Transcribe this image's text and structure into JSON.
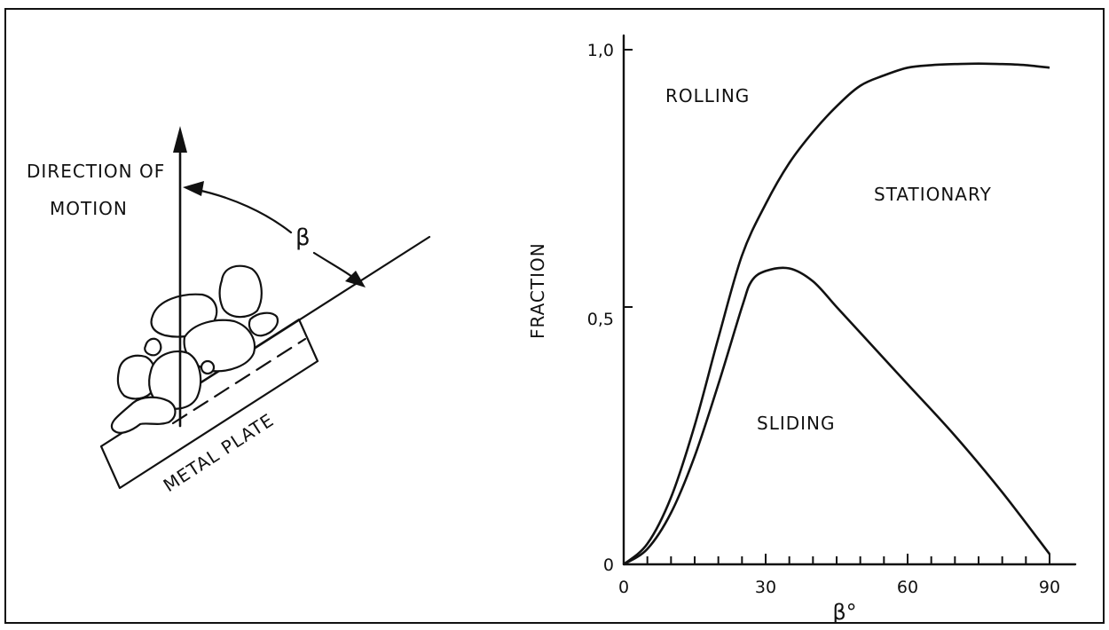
{
  "diagram": {
    "direction_label_line1": "DIRECTION OF",
    "direction_label_line2": "MOTION",
    "angle_label": "β",
    "plate_label": "METAL PLATE"
  },
  "chart_data": {
    "type": "line",
    "xlabel": "β°",
    "ylabel": "FRACTION",
    "xlim": [
      0,
      95
    ],
    "ylim": [
      0,
      1.05
    ],
    "x_ticks": [
      0,
      30,
      60,
      90
    ],
    "x_tick_labels": [
      "0",
      "30",
      "60",
      "90"
    ],
    "y_ticks": [
      0,
      0.5,
      1.0
    ],
    "y_tick_labels": [
      "0",
      "0,5",
      "1,0"
    ],
    "grid": false,
    "region_labels": [
      "ROLLING",
      "STATIONARY",
      "SLIDING"
    ],
    "series": [
      {
        "key": "upper",
        "x": [
          0,
          5,
          10,
          15,
          20,
          25,
          30,
          35,
          40,
          45,
          50,
          55,
          60,
          65,
          70,
          75,
          80,
          85,
          90
        ],
        "y": [
          0,
          0.04,
          0.13,
          0.27,
          0.44,
          0.6,
          0.7,
          0.78,
          0.84,
          0.89,
          0.93,
          0.95,
          0.965,
          0.97,
          0.972,
          0.973,
          0.972,
          0.97,
          0.965
        ]
      },
      {
        "key": "lower",
        "x": [
          0,
          5,
          10,
          15,
          20,
          25,
          27,
          30,
          35,
          40,
          45,
          50,
          60,
          70,
          80,
          90
        ],
        "y": [
          0,
          0.03,
          0.1,
          0.21,
          0.35,
          0.5,
          0.55,
          0.57,
          0.575,
          0.55,
          0.5,
          0.45,
          0.35,
          0.25,
          0.14,
          0.02
        ]
      }
    ]
  }
}
